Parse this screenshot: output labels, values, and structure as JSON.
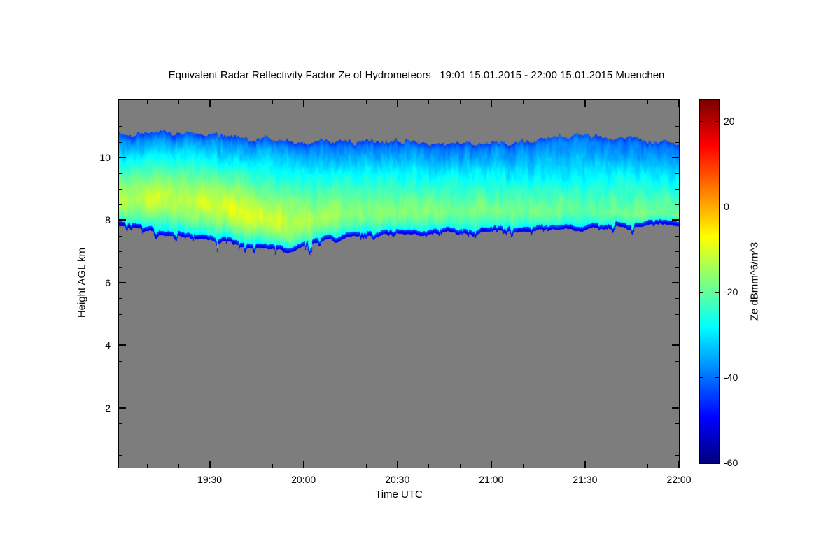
{
  "title": "Equivalent Radar Reflectivity Factor Ze of Hydrometeors   19:01 15.01.2015 - 22:00 15.01.2015 Muenchen",
  "chart_data": {
    "type": "heatmap",
    "title": "Equivalent Radar Reflectivity Factor Ze of Hydrometeors   19:01 15.01.2015 - 22:00 15.01.2015 Muenchen",
    "xlabel": "Time UTC",
    "ylabel": "Height AGL km",
    "plot_bg": "#7d7d7d",
    "grid": false,
    "x_range_minutes": [
      1141,
      1320
    ],
    "x_ticks": [
      {
        "label": "19:30",
        "minutes": 1170
      },
      {
        "label": "20:00",
        "minutes": 1200
      },
      {
        "label": "20:30",
        "minutes": 1230
      },
      {
        "label": "21:00",
        "minutes": 1260
      },
      {
        "label": "21:30",
        "minutes": 1290
      },
      {
        "label": "22:00",
        "minutes": 1320
      }
    ],
    "x_minor_step_minutes": 10,
    "y_range_km": [
      0.1,
      11.83
    ],
    "y_ticks": [
      {
        "label": "2",
        "km": 2
      },
      {
        "label": "4",
        "km": 4
      },
      {
        "label": "6",
        "km": 6
      },
      {
        "label": "8",
        "km": 8
      },
      {
        "label": "10",
        "km": 10
      }
    ],
    "y_minor_step_km": 0.5,
    "colorbar": {
      "label": "Ze dBmm^6/m^3",
      "colormap": "jet",
      "min": -60,
      "max": 25,
      "ticks": [
        {
          "label": "20",
          "value": 20
        },
        {
          "label": "0",
          "value": 0
        },
        {
          "label": "-20",
          "value": -20
        },
        {
          "label": "-40",
          "value": -40
        },
        {
          "label": "-60",
          "value": -60
        }
      ]
    },
    "cloud_layer": {
      "description": "Single elevated ice-cloud layer between ~7 and ~10.8 km AGL over the whole period; reflectivity core (yellow, ~-10 to -13 dB) at 8-9 km from 19:01-20:05, weakening to green/cyan (-17 to -20 dB) afterwards; blue low-reflectivity fringe at cloud top and thin dark-blue edge plus virga spikes at cloud base.",
      "time_frac": [
        0.0,
        0.08,
        0.16,
        0.24,
        0.3,
        0.36,
        0.44,
        0.52,
        0.62,
        0.72,
        0.82,
        0.9,
        1.0
      ],
      "top_km": [
        10.75,
        10.8,
        10.7,
        10.6,
        10.5,
        10.5,
        10.55,
        10.5,
        10.45,
        10.5,
        10.75,
        10.6,
        10.5
      ],
      "base_km": [
        7.9,
        7.5,
        7.4,
        7.1,
        7.0,
        7.3,
        7.5,
        7.55,
        7.6,
        7.65,
        7.7,
        7.75,
        7.85
      ],
      "core_dbz": [
        -13,
        -11,
        -11,
        -10,
        -12,
        -15,
        -18,
        -17,
        -18,
        -19,
        -20,
        -18,
        -19
      ],
      "core_height_km": [
        8.6,
        8.8,
        8.6,
        8.2,
        7.9,
        8.1,
        8.3,
        8.3,
        8.35,
        8.3,
        8.35,
        8.25,
        8.2
      ],
      "top_edge_dbz": -41,
      "base_edge_dbz": -48,
      "no_signal_color": "#7d7d7d"
    }
  }
}
